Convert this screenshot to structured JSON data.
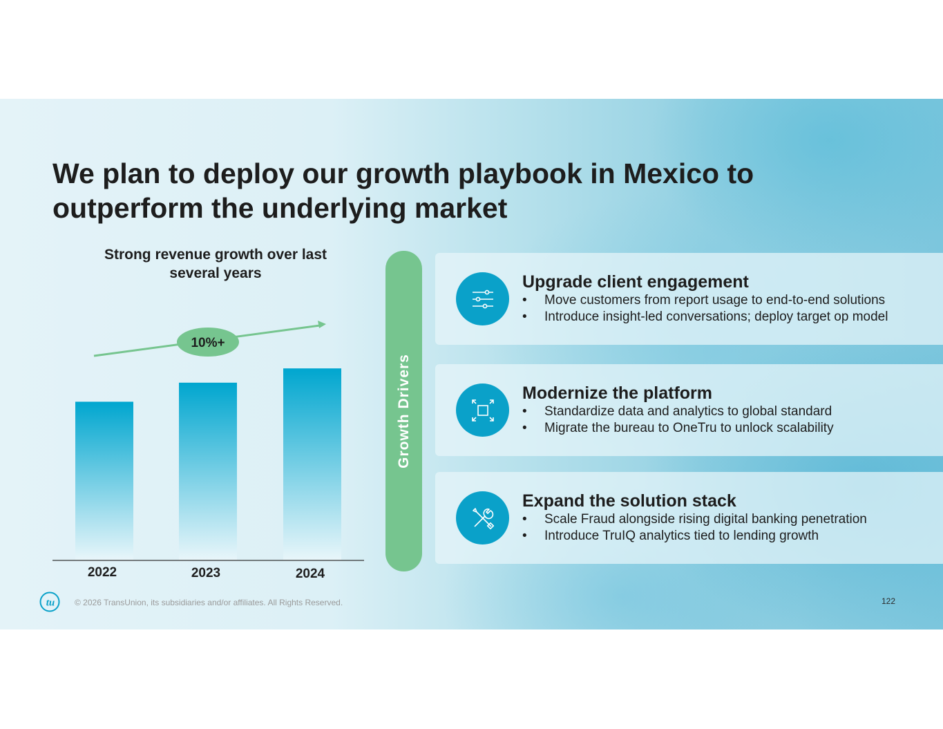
{
  "title": "We plan to deploy our growth playbook in Mexico to outperform the underlying market",
  "chart_data": {
    "type": "bar",
    "title": "Strong revenue growth over last several years",
    "categories": [
      "2022",
      "2023",
      "2024"
    ],
    "values": [
      100,
      112,
      121
    ],
    "ylim": [
      0,
      135
    ],
    "xlabel": "",
    "ylabel": "",
    "grid": false,
    "annotation": "10%+"
  },
  "drivers_label": "Growth Drivers",
  "drivers": [
    {
      "icon": "sliders-icon",
      "title": "Upgrade client engagement",
      "bullets": [
        "Move customers from report usage to end-to-end solutions",
        "Introduce insight-led conversations; deploy target op model"
      ]
    },
    {
      "icon": "expand-icon",
      "title": "Modernize the platform",
      "bullets": [
        "Standardize data and analytics to global standard",
        "Migrate the bureau to OneTru to unlock scalability"
      ]
    },
    {
      "icon": "tools-icon",
      "title": "Expand the solution stack",
      "bullets": [
        "Scale Fraud alongside rising digital banking penetration",
        "Introduce TruIQ analytics tied to lending growth"
      ]
    }
  ],
  "footer": {
    "logo_text": "tu",
    "copyright": "© 2026 TransUnion, its subsidiaries and/or affiliates. All Rights Reserved.",
    "page_number": "122"
  },
  "colors": {
    "bar_top": "#00a6cf",
    "bar_bottom": "#e9f6fa",
    "accent_green": "#76c58f",
    "icon_blue": "#0aa1c9"
  }
}
